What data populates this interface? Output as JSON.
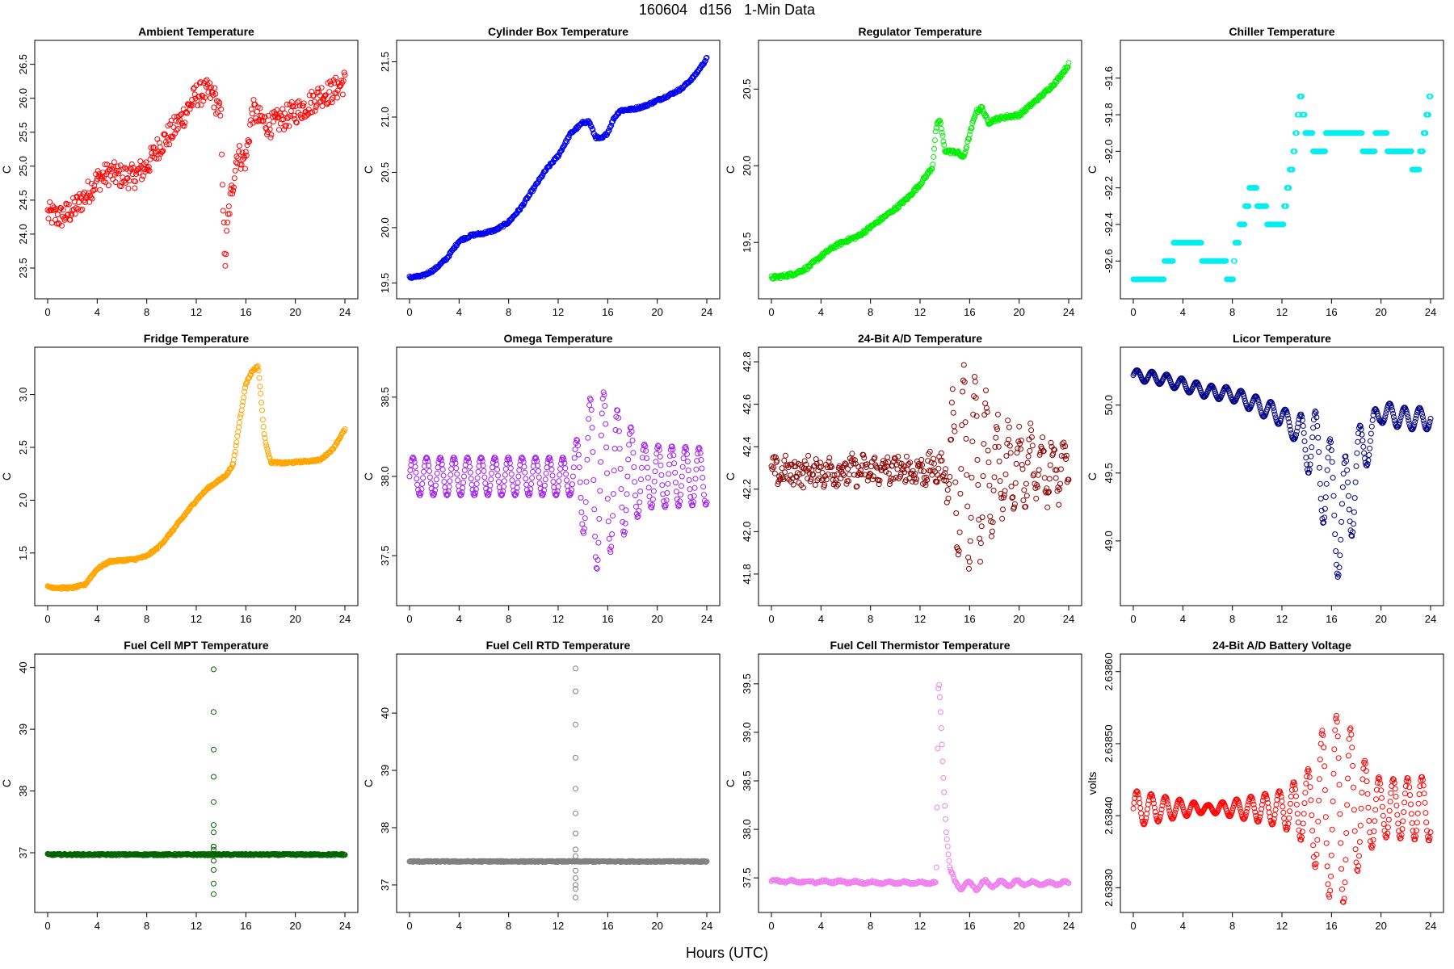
{
  "figure": {
    "title": "160604   d156   1-Min Data",
    "xlabel": "Hours (UTC)"
  },
  "chart_data": [
    {
      "type": "scatter",
      "title": "Ambient Temperature",
      "ylabel": "C",
      "color": "#ff0000",
      "xlim": [
        0,
        24
      ],
      "xticks": [
        0,
        4,
        8,
        12,
        16,
        20,
        24
      ],
      "xtick_labels": [
        "0",
        "4",
        "8",
        "12",
        "16",
        "20",
        "24"
      ],
      "ylim": [
        23.2,
        26.7
      ],
      "yticks": [
        23.5,
        24.0,
        24.5,
        25.0,
        25.5,
        26.0,
        26.5
      ],
      "ytick_labels": [
        "23.5",
        "24.0",
        "24.5",
        "25.0",
        "25.5",
        "26.0",
        "26.5"
      ],
      "noise": 0.18,
      "x": [
        0,
        1,
        2,
        3,
        4,
        5,
        6,
        7,
        8,
        9,
        10,
        11,
        12,
        13,
        13.5,
        14,
        14.3,
        14.6,
        15,
        15.3,
        15.7,
        16,
        16.5,
        16.8,
        17,
        18,
        19,
        20,
        21,
        22,
        23,
        24
      ],
      "y": [
        24.3,
        24.25,
        24.35,
        24.55,
        24.8,
        24.9,
        24.85,
        24.85,
        25.0,
        25.3,
        25.5,
        25.75,
        26.05,
        26.1,
        26.0,
        25.7,
        23.5,
        24.3,
        24.8,
        25.2,
        25.1,
        25.1,
        25.8,
        25.8,
        25.7,
        25.6,
        25.7,
        25.8,
        25.9,
        26.05,
        26.1,
        26.25
      ]
    },
    {
      "type": "scatter",
      "title": "Cylinder Box Temperature",
      "ylabel": "C",
      "color": "#0000ee",
      "xlim": [
        0,
        24
      ],
      "xticks": [
        0,
        4,
        8,
        12,
        16,
        20,
        24
      ],
      "xtick_labels": [
        "0",
        "4",
        "8",
        "12",
        "16",
        "20",
        "24"
      ],
      "ylim": [
        19.45,
        21.6
      ],
      "yticks": [
        19.5,
        20.0,
        20.5,
        21.0,
        21.5
      ],
      "ytick_labels": [
        "19.5",
        "20.0",
        "20.5",
        "21.0",
        "21.5"
      ],
      "noise": 0.012,
      "x": [
        0,
        1,
        2,
        3,
        4,
        5,
        6,
        7,
        8,
        9,
        10,
        11,
        12,
        13,
        14,
        14.5,
        15,
        15.5,
        16,
        16.5,
        17,
        18,
        19,
        20,
        21,
        22,
        23,
        24
      ],
      "y": [
        19.55,
        19.56,
        19.62,
        19.72,
        19.88,
        19.93,
        19.95,
        19.98,
        20.05,
        20.18,
        20.35,
        20.52,
        20.65,
        20.85,
        20.95,
        20.96,
        20.82,
        20.8,
        20.86,
        20.99,
        21.06,
        21.07,
        21.1,
        21.15,
        21.2,
        21.26,
        21.37,
        21.53
      ]
    },
    {
      "type": "scatter",
      "title": "Regulator Temperature",
      "ylabel": "C",
      "color": "#00ee00",
      "xlim": [
        0,
        24
      ],
      "xticks": [
        0,
        4,
        8,
        12,
        16,
        20,
        24
      ],
      "xtick_labels": [
        "0",
        "4",
        "8",
        "12",
        "16",
        "20",
        "24"
      ],
      "ylim": [
        19.2,
        20.75
      ],
      "yticks": [
        19.5,
        20.0,
        20.5
      ],
      "ytick_labels": [
        "19.5",
        "20.0",
        "20.5"
      ],
      "noise": 0.012,
      "x": [
        0,
        1,
        2,
        3,
        4,
        5,
        6,
        7,
        8,
        9,
        10,
        11,
        12,
        13,
        13.3,
        13.6,
        14,
        14.5,
        15,
        15.5,
        16,
        16.5,
        17,
        17.5,
        18,
        19,
        20,
        21,
        22,
        23,
        24
      ],
      "y": [
        19.27,
        19.28,
        19.3,
        19.34,
        19.41,
        19.47,
        19.51,
        19.54,
        19.6,
        19.66,
        19.72,
        19.79,
        19.88,
        19.99,
        20.25,
        20.3,
        20.1,
        20.09,
        20.09,
        20.05,
        20.2,
        20.35,
        20.38,
        20.28,
        20.3,
        20.32,
        20.33,
        20.4,
        20.47,
        20.55,
        20.66
      ]
    },
    {
      "type": "scatter",
      "title": "Chiller Temperature",
      "ylabel": "C",
      "color": "#00eeee",
      "xlim": [
        0,
        24
      ],
      "xticks": [
        0,
        4,
        8,
        12,
        16,
        20,
        24
      ],
      "xtick_labels": [
        "0",
        "4",
        "8",
        "12",
        "16",
        "20",
        "24"
      ],
      "ylim": [
        -92.75,
        -91.45
      ],
      "yticks": [
        -92.6,
        -92.4,
        -92.2,
        -92.0,
        -91.8,
        -91.6
      ],
      "ytick_labels": [
        "-92.6",
        "-92.4",
        "-92.2",
        "-92.0",
        "-91.8",
        "-91.6"
      ],
      "noise": 0,
      "x": [
        0,
        1,
        2,
        3,
        3.5,
        4,
        5,
        6,
        7,
        8,
        8.3,
        8.8,
        9.5,
        10.5,
        11,
        12,
        13,
        13.5,
        14,
        15,
        16,
        17,
        18,
        19,
        20,
        21,
        22,
        23,
        24
      ],
      "y": [
        -92.7,
        -92.7,
        -92.7,
        -92.6,
        -92.5,
        -92.5,
        -92.5,
        -92.6,
        -92.6,
        -92.7,
        -92.5,
        -92.4,
        -92.2,
        -92.3,
        -92.4,
        -92.4,
        -92.0,
        -91.7,
        -91.9,
        -92.0,
        -91.9,
        -91.9,
        -91.9,
        -92.0,
        -91.9,
        -92.0,
        -92.0,
        -92.1,
        -91.7
      ],
      "scatter_levels": [
        -92.7,
        -92.6,
        -92.5,
        -92.4,
        -92.3,
        -92.2,
        -92.1,
        -92.0,
        -91.9,
        -91.8,
        -91.7,
        -91.6,
        -91.5
      ]
    },
    {
      "type": "scatter",
      "title": "Fridge Temperature",
      "ylabel": "C",
      "color": "#ffa500",
      "xlim": [
        0,
        24
      ],
      "xticks": [
        0,
        4,
        8,
        12,
        16,
        20,
        24
      ],
      "xtick_labels": [
        "0",
        "4",
        "8",
        "12",
        "16",
        "20",
        "24"
      ],
      "ylim": [
        1.1,
        3.35
      ],
      "yticks": [
        1.5,
        2.0,
        2.5,
        3.0
      ],
      "ytick_labels": [
        "1.5",
        "2.0",
        "2.5",
        "3.0"
      ],
      "noise": 0.01,
      "x": [
        0,
        1,
        2,
        3,
        4,
        5,
        6,
        7,
        8,
        9,
        10,
        11,
        12,
        13,
        14,
        14.5,
        15,
        15.5,
        16,
        16.5,
        17,
        17.5,
        18,
        19,
        20,
        21,
        22,
        23,
        24
      ],
      "y": [
        1.18,
        1.17,
        1.17,
        1.2,
        1.35,
        1.42,
        1.43,
        1.44,
        1.47,
        1.56,
        1.7,
        1.85,
        2.0,
        2.12,
        2.2,
        2.25,
        2.35,
        2.75,
        3.1,
        3.22,
        3.27,
        2.6,
        2.36,
        2.35,
        2.36,
        2.37,
        2.38,
        2.48,
        2.67
      ]
    },
    {
      "type": "scatter",
      "title": "Omega Temperature",
      "ylabel": "C",
      "color": "#a020f0",
      "xlim": [
        0,
        24
      ],
      "xticks": [
        0,
        4,
        8,
        12,
        16,
        20,
        24
      ],
      "xtick_labels": [
        "0",
        "4",
        "8",
        "12",
        "16",
        "20",
        "24"
      ],
      "ylim": [
        37.25,
        38.75
      ],
      "yticks": [
        37.5,
        38.0,
        38.5
      ],
      "ytick_labels": [
        "37.5",
        "38.0",
        "38.5"
      ],
      "noise": 0,
      "osc": {
        "base": 38.0,
        "amp": [
          [
            0,
            0.12
          ],
          [
            13,
            0.12
          ],
          [
            14,
            0.35
          ],
          [
            15,
            0.6
          ],
          [
            16,
            0.5
          ],
          [
            17.5,
            0.35
          ],
          [
            19,
            0.2
          ],
          [
            24,
            0.18
          ]
        ],
        "period": 1.1
      },
      "x": [
        0,
        24
      ],
      "y": [
        38.0,
        38.0
      ]
    },
    {
      "type": "scatter",
      "title": "24-Bit A/D Temperature",
      "ylabel": "C",
      "color": "#8b0000",
      "xlim": [
        0,
        24
      ],
      "xticks": [
        0,
        4,
        8,
        12,
        16,
        20,
        24
      ],
      "xtick_labels": [
        "0",
        "4",
        "8",
        "12",
        "16",
        "20",
        "24"
      ],
      "ylim": [
        41.7,
        42.82
      ],
      "yticks": [
        41.8,
        42.0,
        42.2,
        42.4,
        42.6,
        42.8
      ],
      "ytick_labels": [
        "41.8",
        "42.0",
        "42.2",
        "42.4",
        "42.6",
        "42.8"
      ],
      "noise": 0.06,
      "osc": {
        "base": 42.28,
        "amp": [
          [
            0,
            0.02
          ],
          [
            14,
            0.03
          ],
          [
            14.8,
            0.4
          ],
          [
            15.5,
            0.45
          ],
          [
            17,
            0.4
          ],
          [
            18.5,
            0.2
          ],
          [
            24,
            0.1
          ]
        ],
        "period": 0.9
      },
      "x": [
        0,
        24
      ],
      "y": [
        42.28,
        42.3
      ]
    },
    {
      "type": "scatter",
      "title": "Licor Temperature",
      "ylabel": "C",
      "color": "#000080",
      "xlim": [
        0,
        24
      ],
      "xticks": [
        0,
        4,
        8,
        12,
        16,
        20,
        24
      ],
      "xtick_labels": [
        "0",
        "4",
        "8",
        "12",
        "16",
        "20",
        "24"
      ],
      "ylim": [
        48.6,
        50.35
      ],
      "yticks": [
        49.0,
        49.5,
        50.0
      ],
      "ytick_labels": [
        "49.0",
        "49.5",
        "50.0"
      ],
      "noise": 0,
      "osc": {
        "base": 0,
        "amp": [
          [
            0,
            0.04
          ],
          [
            8,
            0.05
          ],
          [
            13,
            0.08
          ],
          [
            15,
            0.35
          ],
          [
            17,
            0.5
          ],
          [
            18.5,
            0.2
          ],
          [
            20,
            0.08
          ],
          [
            24,
            0.08
          ]
        ],
        "period": 1.2
      },
      "x": [
        0,
        2,
        4,
        6,
        8,
        10,
        12,
        13,
        14,
        15,
        16,
        17,
        18,
        19,
        20,
        22,
        24
      ],
      "y": [
        50.22,
        50.2,
        50.15,
        50.1,
        50.08,
        50.0,
        49.92,
        49.82,
        49.75,
        49.6,
        49.3,
        49.1,
        49.55,
        49.75,
        49.95,
        49.9,
        49.9
      ]
    },
    {
      "type": "scatter",
      "title": "Fuel Cell MPT Temperature",
      "ylabel": "C",
      "color": "#006400",
      "xlim": [
        0,
        24
      ],
      "xticks": [
        0,
        4,
        8,
        12,
        16,
        20,
        24
      ],
      "xtick_labels": [
        "0",
        "4",
        "8",
        "12",
        "16",
        "20",
        "24"
      ],
      "ylim": [
        36.2,
        40.05
      ],
      "yticks": [
        37,
        38,
        39,
        40
      ],
      "ytick_labels": [
        "37",
        "38",
        "39",
        "40"
      ],
      "noise": 0.012,
      "x": [
        0,
        24
      ],
      "y": [
        36.97,
        36.97
      ],
      "spike": {
        "x": 13.4,
        "values": [
          39.97,
          39.28,
          38.67,
          38.23,
          37.82,
          37.45,
          37.33,
          37.1,
          36.87,
          36.72,
          36.5,
          36.33,
          37.05,
          37.1
        ]
      }
    },
    {
      "type": "scatter",
      "title": "Fuel Cell RTD Temperature",
      "ylabel": "C",
      "color": "#808080",
      "xlim": [
        0,
        24
      ],
      "xticks": [
        0,
        4,
        8,
        12,
        16,
        20,
        24
      ],
      "xtick_labels": [
        "0",
        "4",
        "8",
        "12",
        "16",
        "20",
        "24"
      ],
      "ylim": [
        36.7,
        40.85
      ],
      "yticks": [
        37,
        38,
        39,
        40
      ],
      "ytick_labels": [
        "37",
        "38",
        "39",
        "40"
      ],
      "noise": 0.01,
      "x": [
        0,
        24
      ],
      "y": [
        37.41,
        37.41
      ],
      "spike": {
        "x": 13.4,
        "values": [
          40.78,
          40.38,
          39.8,
          39.22,
          38.68,
          38.25,
          37.9,
          37.62,
          37.5,
          37.25,
          37.12,
          37.0,
          36.93,
          36.78
        ]
      }
    },
    {
      "type": "scatter",
      "title": "Fuel Cell Thermistor Temperature",
      "ylabel": "C",
      "color": "#ee82ee",
      "xlim": [
        0,
        24
      ],
      "xticks": [
        0,
        4,
        8,
        12,
        16,
        20,
        24
      ],
      "xtick_labels": [
        "0",
        "4",
        "8",
        "12",
        "16",
        "20",
        "24"
      ],
      "ylim": [
        37.25,
        39.7
      ],
      "yticks": [
        37.5,
        38.0,
        38.5,
        39.0,
        39.5
      ],
      "ytick_labels": [
        "37.5",
        "38.0",
        "38.5",
        "39.0",
        "39.5"
      ],
      "noise": 0.01,
      "x": [
        0,
        2,
        4,
        6,
        8,
        10,
        12,
        13.3,
        13.5,
        13.7,
        13.9,
        14.1,
        14.4,
        14.8,
        15.5,
        16.5,
        17.5,
        18.5,
        20,
        22,
        24
      ],
      "y": [
        37.47,
        37.46,
        37.46,
        37.46,
        37.45,
        37.45,
        37.45,
        37.45,
        39.6,
        39.1,
        38.5,
        38.0,
        37.6,
        37.45,
        37.42,
        37.42,
        37.44,
        37.44,
        37.45,
        37.44,
        37.45
      ],
      "osc": {
        "base": 0,
        "amp": [
          [
            0,
            0.01
          ],
          [
            14.5,
            0.01
          ],
          [
            15,
            0.05
          ],
          [
            17,
            0.04
          ],
          [
            20,
            0.02
          ],
          [
            24,
            0.015
          ]
        ],
        "period": 1.3
      }
    },
    {
      "type": "scatter",
      "title": "24-Bit A/D Battery Voltage",
      "ylabel": "volts",
      "color": "#ff0000",
      "xlim": [
        0,
        24
      ],
      "xticks": [
        0,
        4,
        8,
        12,
        16,
        20,
        24
      ],
      "xtick_labels": [
        "0",
        "4",
        "8",
        "12",
        "16",
        "20",
        "24"
      ],
      "ylim": [
        2.63828,
        2.63861
      ],
      "yticks": [
        2.6383,
        2.6384,
        2.6385,
        2.6386
      ],
      "ytick_labels": [
        "2.63830",
        "2.63840",
        "2.63850",
        "2.63860"
      ],
      "noise": 0,
      "osc": {
        "base": 2.63841,
        "amp": [
          [
            0,
            2.5e-05
          ],
          [
            6,
            5e-06
          ],
          [
            12,
            2.5e-05
          ],
          [
            14,
            5e-05
          ],
          [
            15.5,
            0.00012
          ],
          [
            17,
            0.000135
          ],
          [
            18.5,
            7e-05
          ],
          [
            20,
            4e-05
          ],
          [
            24,
            4.5e-05
          ]
        ],
        "period": 1.15
      },
      "x": [
        0,
        24
      ],
      "y": [
        2.63841,
        2.63841
      ]
    }
  ]
}
